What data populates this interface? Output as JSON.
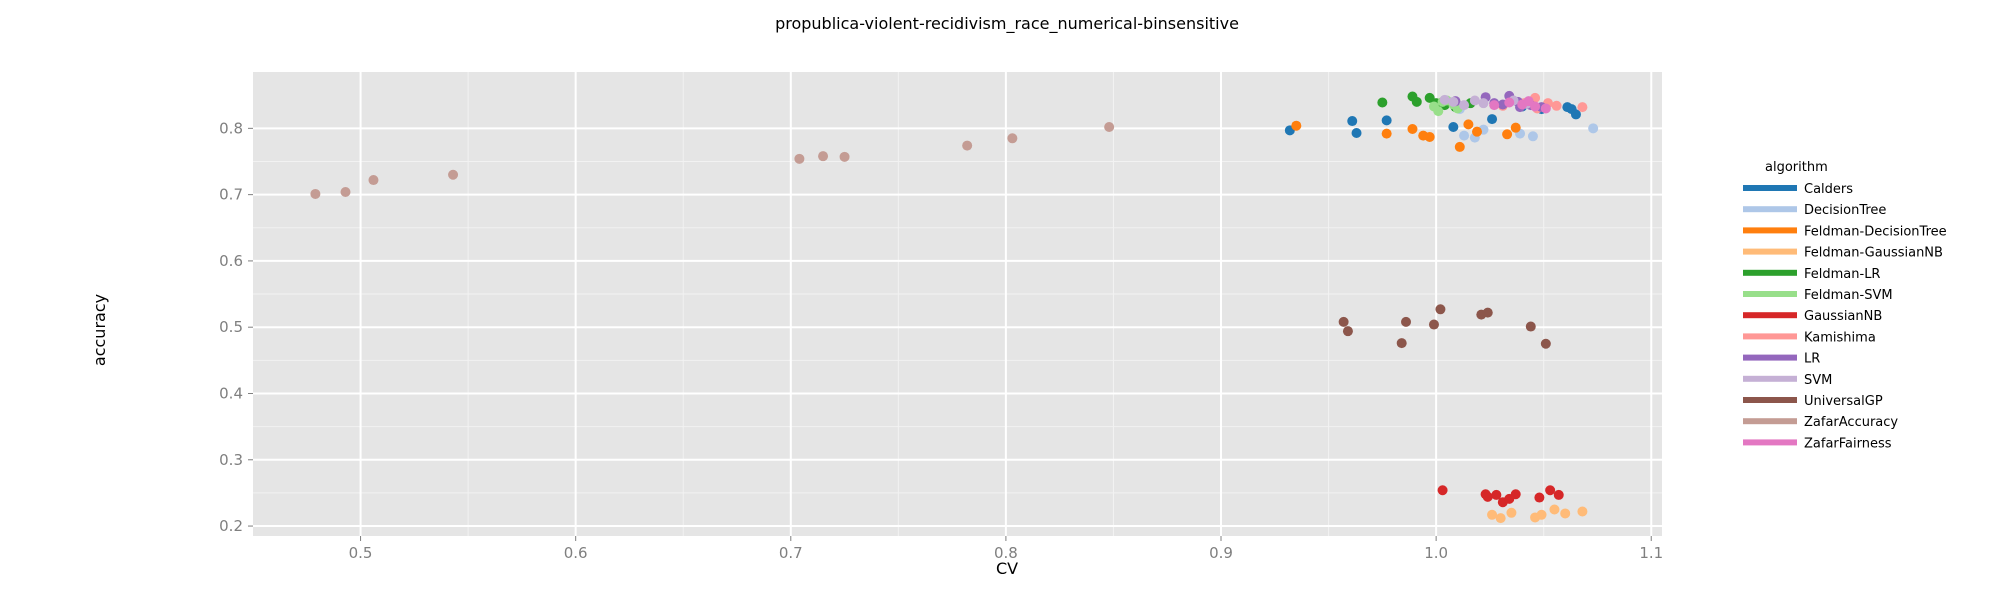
{
  "chart_data": {
    "type": "scatter",
    "title": "propublica-violent-recidivism_race_numerical-binsensitive",
    "xlabel": "CV",
    "ylabel": "accuracy",
    "xlim": [
      0.45,
      1.105
    ],
    "ylim": [
      0.185,
      0.885
    ],
    "xticks": [
      0.5,
      0.6,
      0.7,
      0.8,
      0.9,
      1.0,
      1.1
    ],
    "xtick_labels": [
      "0.5",
      "0.6",
      "0.7",
      "0.8",
      "0.9",
      "1.0",
      "1.1"
    ],
    "yticks": [
      0.2,
      0.3,
      0.4,
      0.5,
      0.6,
      0.7,
      0.8
    ],
    "ytick_labels": [
      "0.2",
      "0.3",
      "0.4",
      "0.5",
      "0.6",
      "0.7",
      "0.8"
    ],
    "grid": true,
    "legend_title": "algorithm",
    "legend_position": "right",
    "series": [
      {
        "name": "Calders",
        "color": "#1f77b4",
        "points": [
          [
            0.932,
            0.797
          ],
          [
            0.961,
            0.811
          ],
          [
            0.963,
            0.793
          ],
          [
            0.977,
            0.812
          ],
          [
            1.008,
            0.802
          ],
          [
            1.026,
            0.814
          ],
          [
            1.061,
            0.832
          ],
          [
            1.063,
            0.829
          ],
          [
            1.065,
            0.821
          ],
          [
            1.04,
            0.833
          ],
          [
            1.049,
            0.829
          ]
        ]
      },
      {
        "name": "DecisionTree",
        "color": "#aec7e8",
        "points": [
          [
            1.013,
            0.789
          ],
          [
            1.018,
            0.786
          ],
          [
            1.022,
            0.798
          ],
          [
            1.039,
            0.792
          ],
          [
            1.045,
            0.788
          ],
          [
            1.073,
            0.8
          ],
          [
            1.011,
            0.829
          ]
        ]
      },
      {
        "name": "Feldman-DecisionTree",
        "color": "#ff7f0e",
        "points": [
          [
            0.935,
            0.804
          ],
          [
            0.977,
            0.792
          ],
          [
            0.989,
            0.799
          ],
          [
            0.994,
            0.789
          ],
          [
            0.997,
            0.787
          ],
          [
            1.011,
            0.772
          ],
          [
            1.015,
            0.806
          ],
          [
            1.019,
            0.795
          ],
          [
            1.033,
            0.791
          ],
          [
            1.037,
            0.801
          ]
        ]
      },
      {
        "name": "Feldman-GaussianNB",
        "color": "#ffbb78",
        "points": [
          [
            1.026,
            0.217
          ],
          [
            1.03,
            0.212
          ],
          [
            1.035,
            0.22
          ],
          [
            1.046,
            0.213
          ],
          [
            1.049,
            0.217
          ],
          [
            1.055,
            0.225
          ],
          [
            1.06,
            0.219
          ],
          [
            1.068,
            0.222
          ]
        ]
      },
      {
        "name": "Feldman-LR",
        "color": "#2ca02c",
        "points": [
          [
            0.975,
            0.839
          ],
          [
            0.989,
            0.848
          ],
          [
            0.991,
            0.84
          ],
          [
            0.997,
            0.846
          ],
          [
            1.0,
            0.838
          ],
          [
            1.004,
            0.835
          ],
          [
            1.009,
            0.832
          ],
          [
            1.016,
            0.838
          ]
        ]
      },
      {
        "name": "Feldman-SVM",
        "color": "#98df8a",
        "points": [
          [
            0.999,
            0.833
          ],
          [
            1.001,
            0.826
          ],
          [
            1.003,
            0.84
          ],
          [
            1.005,
            0.842
          ],
          [
            1.008,
            0.836
          ],
          [
            1.01,
            0.83
          ]
        ]
      },
      {
        "name": "GaussianNB",
        "color": "#d62728",
        "points": [
          [
            1.003,
            0.254
          ],
          [
            1.023,
            0.248
          ],
          [
            1.024,
            0.244
          ],
          [
            1.028,
            0.247
          ],
          [
            1.031,
            0.236
          ],
          [
            1.034,
            0.241
          ],
          [
            1.037,
            0.248
          ],
          [
            1.048,
            0.243
          ],
          [
            1.053,
            0.254
          ],
          [
            1.057,
            0.247
          ]
        ]
      },
      {
        "name": "Kamishima",
        "color": "#ff9896",
        "points": [
          [
            1.031,
            0.834
          ],
          [
            1.041,
            0.838
          ],
          [
            1.046,
            0.846
          ],
          [
            1.052,
            0.838
          ],
          [
            1.056,
            0.834
          ],
          [
            1.068,
            0.832
          ],
          [
            1.047,
            0.83
          ]
        ]
      },
      {
        "name": "LR",
        "color": "#9467bd",
        "points": [
          [
            1.009,
            0.841
          ],
          [
            1.023,
            0.847
          ],
          [
            1.027,
            0.838
          ],
          [
            1.031,
            0.836
          ],
          [
            1.034,
            0.849
          ],
          [
            1.038,
            0.84
          ],
          [
            1.039,
            0.832
          ],
          [
            1.044,
            0.835
          ],
          [
            1.049,
            0.832
          ]
        ]
      },
      {
        "name": "SVM",
        "color": "#c5b0d5",
        "points": [
          [
            1.004,
            0.843
          ],
          [
            1.008,
            0.84
          ],
          [
            1.013,
            0.835
          ],
          [
            1.018,
            0.842
          ],
          [
            1.022,
            0.838
          ],
          [
            1.036,
            0.842
          ],
          [
            1.042,
            0.837
          ]
        ]
      },
      {
        "name": "UniversalGP",
        "color": "#8c564b",
        "points": [
          [
            0.957,
            0.508
          ],
          [
            0.959,
            0.494
          ],
          [
            0.984,
            0.476
          ],
          [
            0.986,
            0.508
          ],
          [
            0.999,
            0.504
          ],
          [
            1.002,
            0.527
          ],
          [
            1.021,
            0.519
          ],
          [
            1.024,
            0.522
          ],
          [
            1.044,
            0.501
          ],
          [
            1.051,
            0.475
          ]
        ]
      },
      {
        "name": "ZafarAccuracy",
        "color": "#c49c94",
        "points": [
          [
            0.479,
            0.701
          ],
          [
            0.493,
            0.704
          ],
          [
            0.506,
            0.722
          ],
          [
            0.543,
            0.73
          ],
          [
            0.704,
            0.754
          ],
          [
            0.715,
            0.758
          ],
          [
            0.725,
            0.757
          ],
          [
            0.782,
            0.774
          ],
          [
            0.803,
            0.785
          ],
          [
            0.848,
            0.802
          ]
        ]
      },
      {
        "name": "ZafarFairness",
        "color": "#e377c2",
        "points": [
          [
            1.027,
            0.835
          ],
          [
            1.034,
            0.839
          ],
          [
            1.04,
            0.836
          ],
          [
            1.046,
            0.833
          ],
          [
            1.051,
            0.83
          ],
          [
            1.043,
            0.841
          ]
        ]
      }
    ]
  }
}
